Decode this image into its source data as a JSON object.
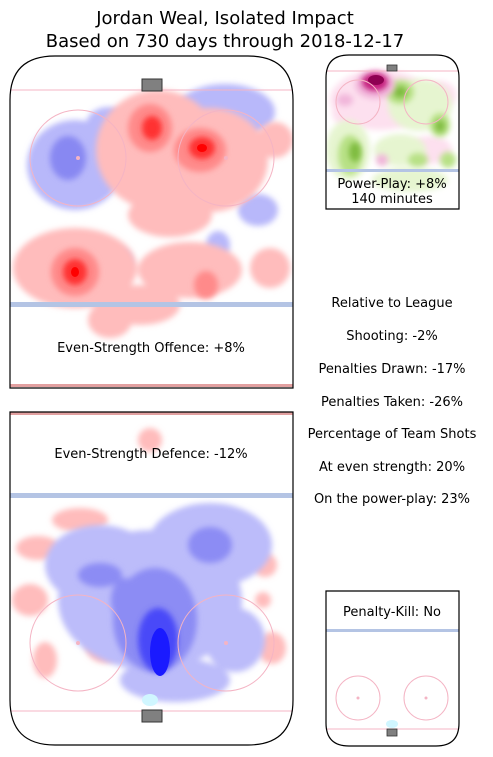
{
  "title": {
    "line1": "Jordan Weal, Isolated Impact",
    "line2": "Based on 730 days through 2018-12-17"
  },
  "panels": {
    "offence_label": "Even-Strength Offence: +8%",
    "defence_label": "Even-Strength Defence: -12%",
    "pp_label_line1": "Power-Play: +8%",
    "pp_label_line2": "140 minutes",
    "pk_label": "Penalty-Kill: No"
  },
  "stats": {
    "heading": "Relative to League",
    "shooting": "Shooting: -2%",
    "penalties_drawn": "Penalties Drawn: -17%",
    "penalties_taken": "Penalties Taken: -26%",
    "team_shots_heading": "Percentage of Team Shots",
    "even_strength": "At even strength: 20%",
    "power_play": "On the power-play: 23%"
  },
  "chart_data": [
    {
      "type": "heatmap",
      "name": "Even-Strength Offence",
      "value_pct": 8,
      "colors": {
        "positive": "#ff0000",
        "negative": "#0000ff"
      }
    },
    {
      "type": "heatmap",
      "name": "Even-Strength Defence",
      "value_pct": -12,
      "colors": {
        "positive": "#ff0000",
        "negative": "#0000ff"
      }
    },
    {
      "type": "heatmap",
      "name": "Power-Play",
      "value_pct": 8,
      "minutes": 140,
      "colors": {
        "positive": "#8e0152",
        "negative": "#4d9221"
      }
    },
    {
      "type": "heatmap",
      "name": "Penalty-Kill",
      "value": "No"
    }
  ],
  "colors": {
    "rink_line_blue": "#b4c4e4",
    "rink_circle": "#f4b4c4",
    "net": "#808080"
  }
}
